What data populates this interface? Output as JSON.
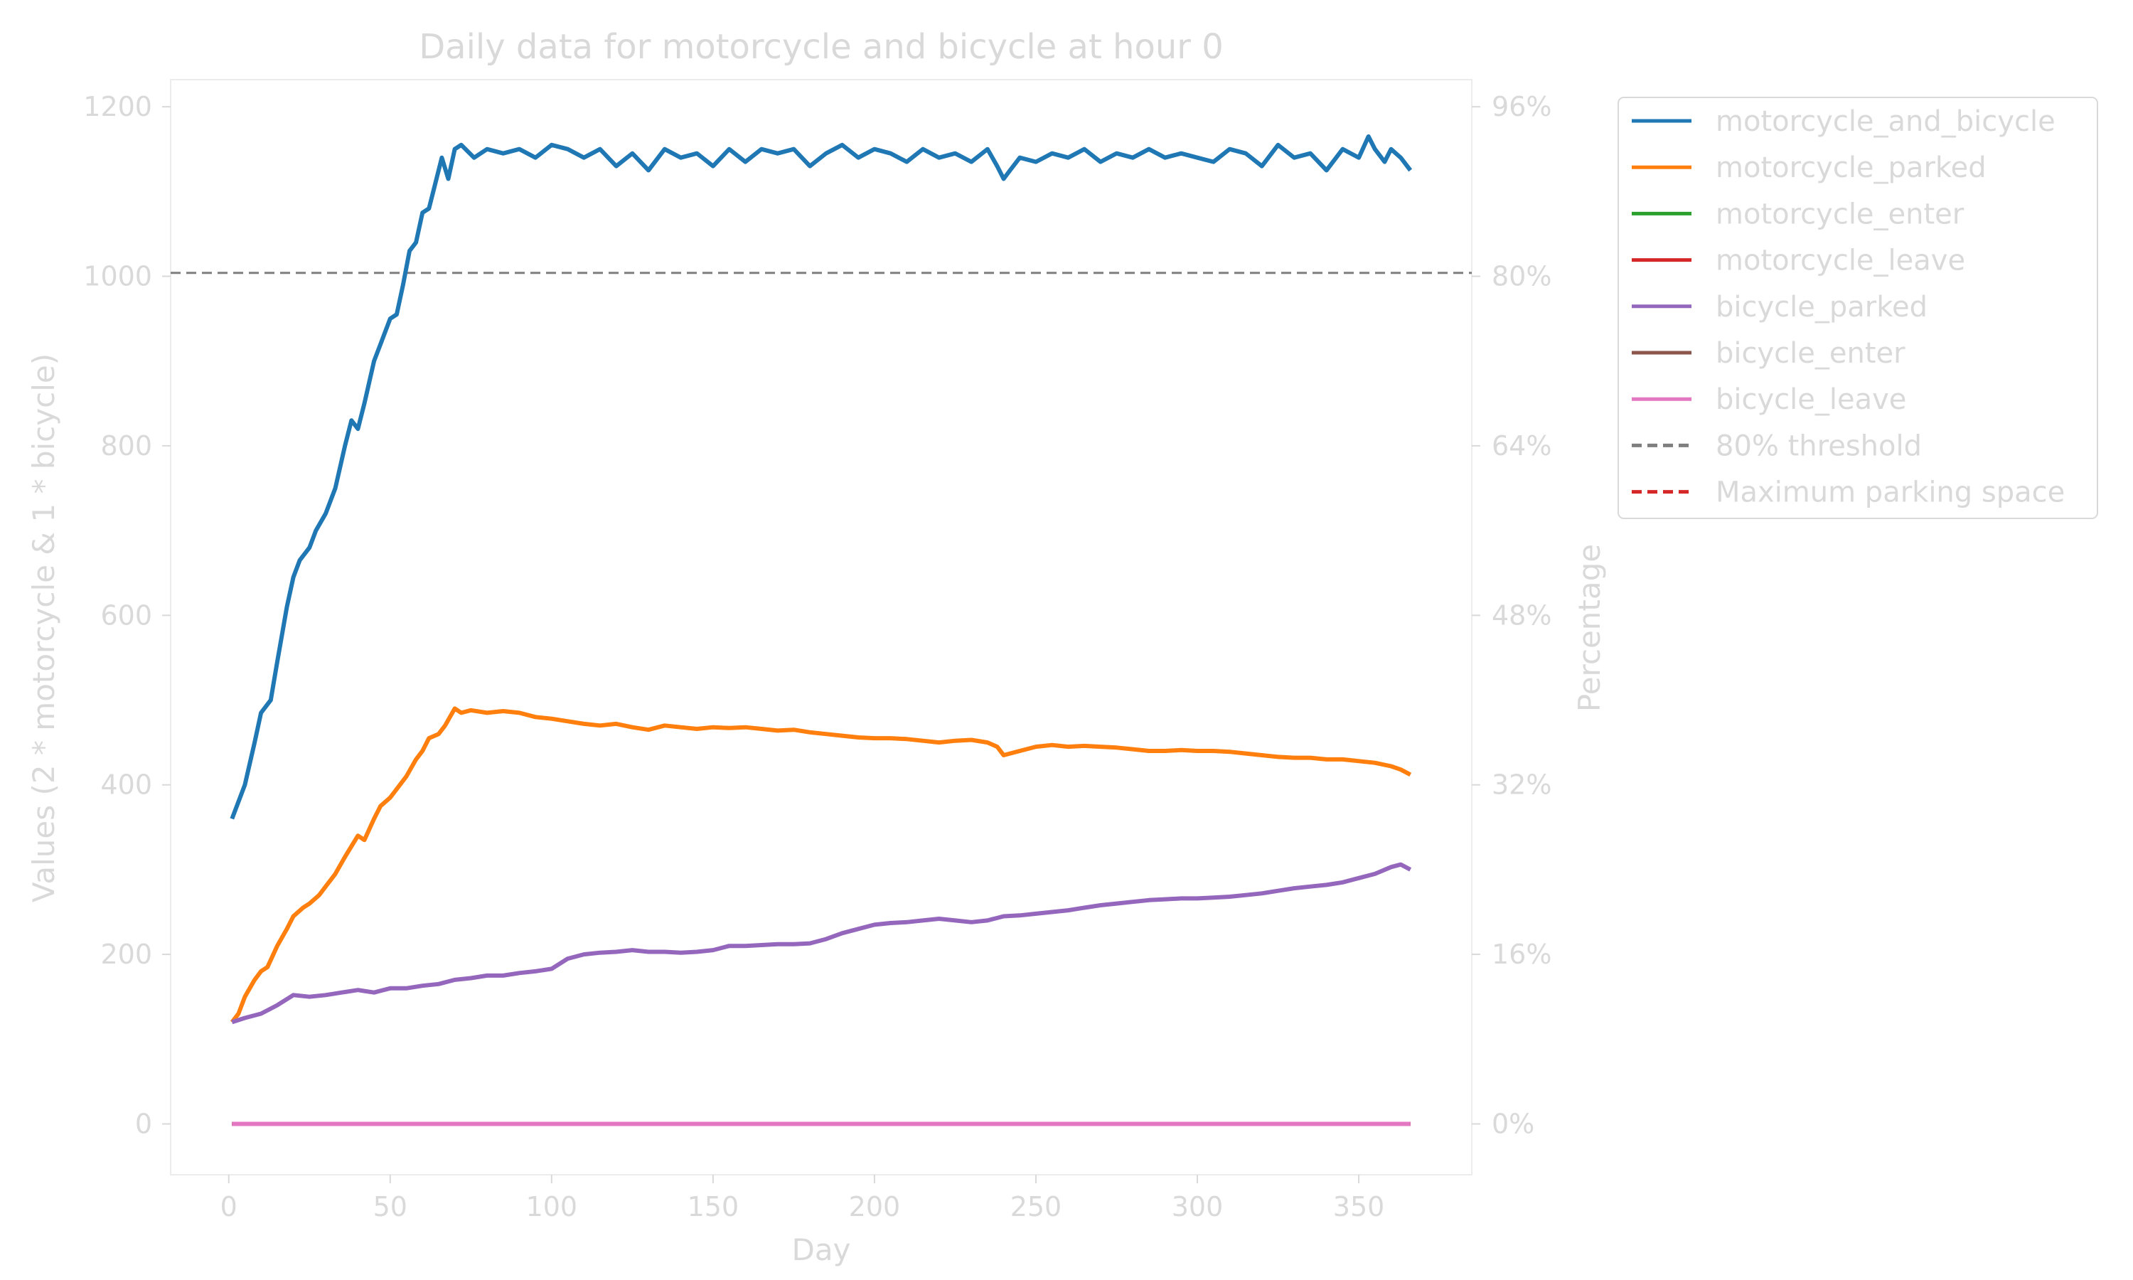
{
  "chart_data": {
    "type": "line",
    "title": "Daily data for motorcycle and bicycle at hour 0",
    "xlabel": "Day",
    "ylabel": "Values (2 * motorcycle & 1 * bicycle)",
    "y2label": "Percentage",
    "xlim": [
      -18,
      385
    ],
    "ylim": [
      -60,
      1232
    ],
    "y2lim": [
      -4.8,
      98.56
    ],
    "xticks": [
      0,
      50,
      100,
      150,
      200,
      250,
      300,
      350
    ],
    "xtick_labels": [
      "0",
      "50",
      "100",
      "150",
      "200",
      "250",
      "300",
      "350"
    ],
    "yticks": [
      0,
      200,
      400,
      600,
      800,
      1000,
      1200
    ],
    "ytick_labels": [
      "0",
      "200",
      "400",
      "600",
      "800",
      "1000",
      "1200"
    ],
    "y2ticks": [
      0,
      16,
      32,
      48,
      64,
      80,
      96
    ],
    "y2tick_labels": [
      "0%",
      "16%",
      "32%",
      "48%",
      "64%",
      "80%",
      "96%"
    ],
    "grid": false,
    "legend_position": "outside-right-top",
    "reference_lines": [
      {
        "name": "80% threshold",
        "y": 1004,
        "color": "#7f7f7f",
        "style": "dashed"
      }
    ],
    "series": [
      {
        "name": "motorcycle_and_bicycle",
        "color": "#1f77b4",
        "x": [
          1,
          5,
          8,
          10,
          13,
          15,
          18,
          20,
          22,
          25,
          27,
          30,
          33,
          36,
          38,
          40,
          42,
          45,
          47,
          50,
          52,
          54,
          56,
          58,
          60,
          62,
          64,
          66,
          68,
          70,
          72,
          76,
          80,
          85,
          90,
          95,
          100,
          105,
          110,
          115,
          120,
          125,
          130,
          135,
          140,
          145,
          150,
          155,
          160,
          165,
          170,
          175,
          180,
          185,
          190,
          195,
          200,
          205,
          210,
          215,
          220,
          225,
          230,
          235,
          238,
          240,
          242,
          245,
          250,
          255,
          260,
          265,
          270,
          275,
          280,
          285,
          290,
          295,
          300,
          305,
          310,
          315,
          320,
          325,
          330,
          335,
          340,
          345,
          350,
          353,
          355,
          358,
          360,
          363,
          366
        ],
        "values": [
          360,
          400,
          450,
          485,
          500,
          545,
          610,
          645,
          665,
          680,
          700,
          720,
          750,
          800,
          830,
          820,
          850,
          900,
          920,
          950,
          955,
          990,
          1030,
          1040,
          1075,
          1080,
          1110,
          1140,
          1115,
          1150,
          1155,
          1140,
          1150,
          1145,
          1150,
          1140,
          1155,
          1150,
          1140,
          1150,
          1130,
          1145,
          1125,
          1150,
          1140,
          1145,
          1130,
          1150,
          1135,
          1150,
          1145,
          1150,
          1130,
          1145,
          1155,
          1140,
          1150,
          1145,
          1135,
          1150,
          1140,
          1145,
          1135,
          1150,
          1130,
          1115,
          1125,
          1140,
          1135,
          1145,
          1140,
          1150,
          1135,
          1145,
          1140,
          1150,
          1140,
          1145,
          1140,
          1135,
          1150,
          1145,
          1130,
          1155,
          1140,
          1145,
          1125,
          1150,
          1140,
          1165,
          1150,
          1135,
          1150,
          1140,
          1125
        ]
      },
      {
        "name": "motorcycle_parked",
        "color": "#ff7f0e",
        "x": [
          1,
          3,
          5,
          8,
          10,
          12,
          15,
          18,
          20,
          23,
          25,
          28,
          30,
          33,
          36,
          40,
          42,
          45,
          47,
          50,
          52,
          55,
          58,
          60,
          62,
          65,
          67,
          70,
          72,
          75,
          80,
          85,
          90,
          95,
          100,
          105,
          110,
          115,
          120,
          125,
          130,
          135,
          140,
          145,
          150,
          155,
          160,
          165,
          170,
          175,
          180,
          185,
          190,
          195,
          200,
          205,
          210,
          215,
          220,
          225,
          230,
          235,
          238,
          240,
          245,
          250,
          255,
          260,
          265,
          270,
          275,
          280,
          285,
          290,
          295,
          300,
          305,
          310,
          315,
          320,
          325,
          330,
          335,
          340,
          345,
          350,
          355,
          360,
          363,
          366
        ],
        "values": [
          120,
          130,
          150,
          170,
          180,
          185,
          210,
          230,
          245,
          255,
          260,
          270,
          280,
          295,
          315,
          340,
          335,
          360,
          375,
          385,
          395,
          410,
          430,
          440,
          455,
          460,
          470,
          490,
          485,
          488,
          485,
          487,
          485,
          480,
          478,
          475,
          472,
          470,
          472,
          468,
          465,
          470,
          468,
          466,
          468,
          467,
          468,
          466,
          464,
          465,
          462,
          460,
          458,
          456,
          455,
          455,
          454,
          452,
          450,
          452,
          453,
          450,
          445,
          435,
          440,
          445,
          447,
          445,
          446,
          445,
          444,
          442,
          440,
          440,
          441,
          440,
          440,
          439,
          437,
          435,
          433,
          432,
          432,
          430,
          430,
          428,
          426,
          422,
          418,
          412
        ]
      },
      {
        "name": "motorcycle_enter",
        "color": "#2ca02c",
        "x": [
          1,
          366
        ],
        "values": [
          0,
          0
        ]
      },
      {
        "name": "motorcycle_leave",
        "color": "#d62728",
        "x": [
          1,
          366
        ],
        "values": [
          0,
          0
        ]
      },
      {
        "name": "bicycle_parked",
        "color": "#9467bd",
        "x": [
          1,
          5,
          10,
          15,
          20,
          25,
          30,
          35,
          40,
          45,
          50,
          55,
          60,
          65,
          70,
          75,
          80,
          85,
          90,
          95,
          100,
          105,
          110,
          115,
          120,
          125,
          130,
          135,
          140,
          145,
          150,
          155,
          160,
          165,
          170,
          175,
          180,
          185,
          190,
          195,
          200,
          205,
          210,
          215,
          220,
          225,
          230,
          235,
          240,
          245,
          250,
          255,
          260,
          265,
          270,
          275,
          280,
          285,
          290,
          295,
          300,
          305,
          310,
          315,
          320,
          325,
          330,
          335,
          340,
          345,
          350,
          355,
          360,
          363,
          366
        ],
        "values": [
          120,
          125,
          130,
          140,
          152,
          150,
          152,
          155,
          158,
          155,
          160,
          160,
          163,
          165,
          170,
          172,
          175,
          175,
          178,
          180,
          183,
          195,
          200,
          202,
          203,
          205,
          203,
          203,
          202,
          203,
          205,
          210,
          210,
          211,
          212,
          212,
          213,
          218,
          225,
          230,
          235,
          237,
          238,
          240,
          242,
          240,
          238,
          240,
          245,
          246,
          248,
          250,
          252,
          255,
          258,
          260,
          262,
          264,
          265,
          266,
          266,
          267,
          268,
          270,
          272,
          275,
          278,
          280,
          282,
          285,
          290,
          295,
          303,
          306,
          300
        ]
      },
      {
        "name": "bicycle_enter",
        "color": "#8c564b",
        "x": [
          1,
          366
        ],
        "values": [
          0,
          0
        ]
      },
      {
        "name": "bicycle_leave",
        "color": "#e377c2",
        "x": [
          1,
          366
        ],
        "values": [
          0,
          0
        ]
      }
    ],
    "legend_entries": [
      {
        "label": "motorcycle_and_bicycle",
        "color": "#1f77b4",
        "style": "solid"
      },
      {
        "label": "motorcycle_parked",
        "color": "#ff7f0e",
        "style": "solid"
      },
      {
        "label": "motorcycle_enter",
        "color": "#2ca02c",
        "style": "solid"
      },
      {
        "label": "motorcycle_leave",
        "color": "#d62728",
        "style": "solid"
      },
      {
        "label": "bicycle_parked",
        "color": "#9467bd",
        "style": "solid"
      },
      {
        "label": "bicycle_enter",
        "color": "#8c564b",
        "style": "solid"
      },
      {
        "label": "bicycle_leave",
        "color": "#e377c2",
        "style": "solid"
      },
      {
        "label": "80% threshold",
        "color": "#7f7f7f",
        "style": "dashed"
      },
      {
        "label": "Maximum parking space",
        "color": "#d62728",
        "style": "dashed"
      }
    ]
  }
}
